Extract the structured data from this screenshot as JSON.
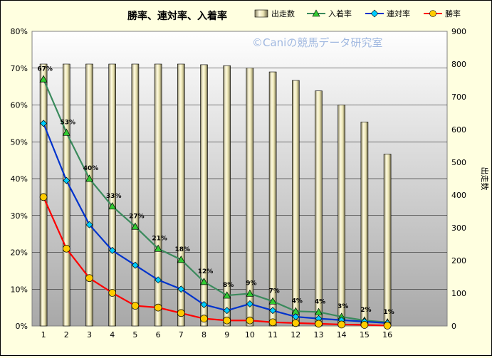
{
  "chart_data": {
    "type": "bar+line",
    "title": "勝率、連対率、入着率",
    "watermark": "©Caniの競馬データ研究室",
    "categories": [
      "1",
      "2",
      "3",
      "4",
      "5",
      "6",
      "7",
      "8",
      "9",
      "10",
      "11",
      "12",
      "13",
      "14",
      "15",
      "16"
    ],
    "bar_series": {
      "name": "出走数",
      "axis": "right",
      "values": [
        800,
        800,
        800,
        800,
        800,
        800,
        800,
        798,
        795,
        788,
        776,
        750,
        718,
        675,
        623,
        525
      ],
      "color": "#ece6b4"
    },
    "line_series": [
      {
        "name": "入着率",
        "axis": "left",
        "color": "#3a8a5c",
        "marker": "triangle",
        "marker_color": "#33cc33",
        "values": [
          67,
          52.5,
          40,
          32.5,
          27,
          21,
          18,
          12,
          8.3,
          8.8,
          6.7,
          4,
          3.8,
          2.5,
          1.5,
          1
        ],
        "data_labels": [
          "67%",
          "53%",
          "40%",
          "33%",
          "27%",
          "21%",
          "18%",
          "12%",
          "8%",
          "9%",
          "7%",
          "4%",
          "4%",
          "3%",
          "2%",
          "1%"
        ]
      },
      {
        "name": "連対率",
        "axis": "left",
        "color": "#0033cc",
        "marker": "diamond",
        "marker_color": "#00ccff",
        "values": [
          55,
          39.5,
          27.5,
          20.5,
          16.5,
          12.5,
          10,
          5.8,
          4.2,
          6,
          4.2,
          2.5,
          2,
          1.6,
          1.2,
          0.8
        ]
      },
      {
        "name": "勝率",
        "axis": "left",
        "color": "#ff0000",
        "marker": "circle",
        "marker_color": "#ffcc00",
        "values": [
          35,
          21,
          13,
          9,
          5.5,
          5,
          3.5,
          2,
          1.5,
          1.5,
          1,
          0.8,
          0.6,
          0.4,
          0.3,
          0.1
        ]
      }
    ],
    "y_left": {
      "ylim": [
        0,
        80
      ],
      "ticks": [
        "0%",
        "10%",
        "20%",
        "30%",
        "40%",
        "50%",
        "60%",
        "70%",
        "80%"
      ]
    },
    "y_right": {
      "label": "出走数",
      "ylim": [
        0,
        900
      ],
      "ticks": [
        "0",
        "100",
        "200",
        "300",
        "400",
        "500",
        "600",
        "700",
        "800",
        "900"
      ]
    },
    "grid": true,
    "legend_position": "top",
    "plot_background": "gradient-gray",
    "page_background": "#ffffe0"
  }
}
